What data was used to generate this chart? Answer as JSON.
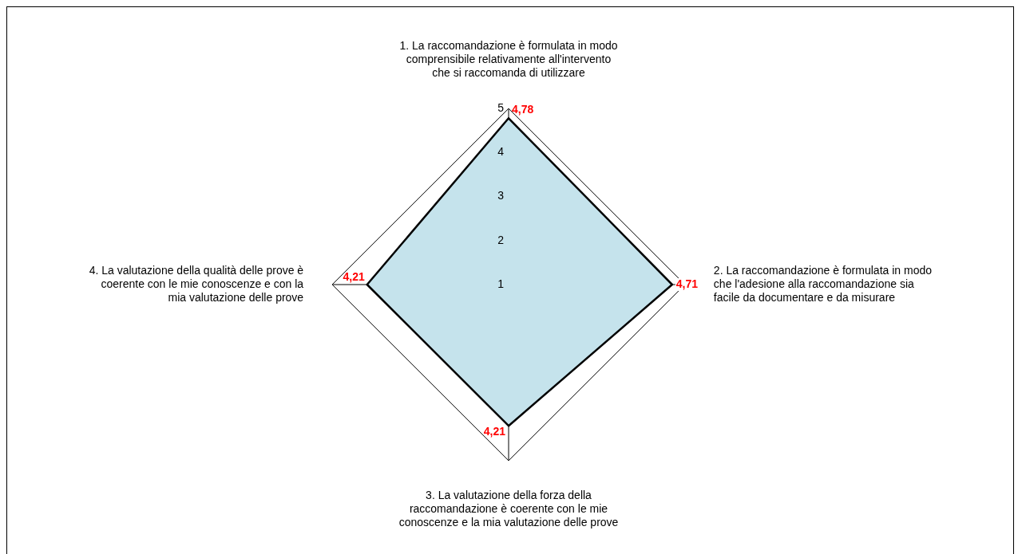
{
  "chart_data": {
    "type": "radar",
    "categories": [
      "1. La raccomandazione è formulata in modo comprensibile relativamente all'intervento che si raccomanda di utilizzare",
      "2. La raccomandazione è formulata in modo che l'adesione alla raccomandazione sia facile da documentare e da misurare",
      "3. La valutazione della forza della raccomandazione è coerente con le mie conoscenze e la mia valutazione delle prove",
      "4. La valutazione della qualità delle prove è coerente con le mie conoscenze e con la mia valutazione delle prove"
    ],
    "series": [
      {
        "color": "#c5e3ec",
        "values": [
          4.78,
          4.71,
          4.21,
          4.21
        ],
        "value_labels": [
          "4,78",
          "4,71",
          "4,21",
          "4,21"
        ]
      }
    ],
    "ylim": [
      1,
      5
    ],
    "yticks": [
      1,
      2,
      3,
      4,
      5
    ],
    "legend": false,
    "marker": "none"
  }
}
